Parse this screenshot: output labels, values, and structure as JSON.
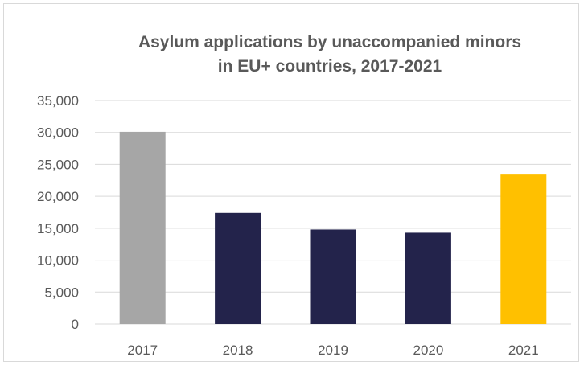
{
  "chart_data": {
    "type": "bar",
    "title_lines": [
      "Asylum applications  by unaccompanied minors",
      "in EU+ countries, 2017-2021"
    ],
    "categories": [
      "2017",
      "2018",
      "2019",
      "2020",
      "2021"
    ],
    "values": [
      30100,
      17400,
      14800,
      14300,
      23400
    ],
    "bar_colors": [
      "#a6a6a6",
      "#23234b",
      "#23234b",
      "#23234b",
      "#ffc000"
    ],
    "ylim": [
      0,
      35000
    ],
    "yticks": [
      0,
      5000,
      10000,
      15000,
      20000,
      25000,
      30000,
      35000
    ],
    "ytick_labels": [
      "0",
      "5,000",
      "10,000",
      "15,000",
      "20,000",
      "25,000",
      "30,000",
      "35,000"
    ],
    "xlabel": "",
    "ylabel": "",
    "grid": true,
    "legend": "none",
    "colors": {
      "grid": "#d9d9d9",
      "text": "#595959"
    }
  }
}
